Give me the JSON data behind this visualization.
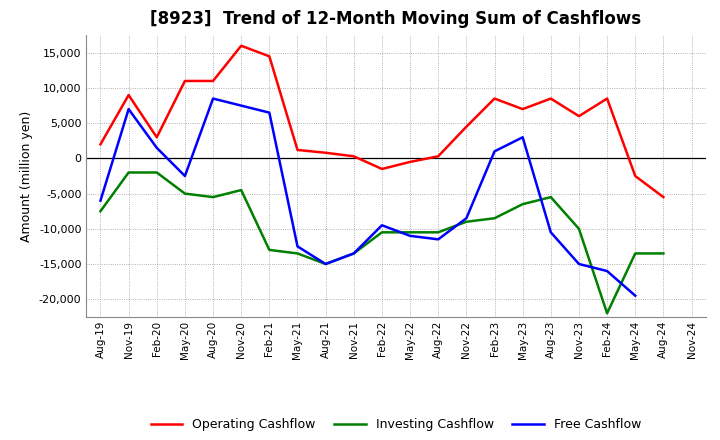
{
  "title": "[8923]  Trend of 12-Month Moving Sum of Cashflows",
  "ylabel": "Amount (million yen)",
  "xlabels": [
    "Aug-19",
    "Nov-19",
    "Feb-20",
    "May-20",
    "Aug-20",
    "Nov-20",
    "Feb-21",
    "May-21",
    "Aug-21",
    "Nov-21",
    "Feb-22",
    "May-22",
    "Aug-22",
    "Nov-22",
    "Feb-23",
    "May-23",
    "Aug-23",
    "Nov-23",
    "Feb-24",
    "May-24",
    "Aug-24",
    "Nov-24"
  ],
  "operating": [
    2000,
    9000,
    3000,
    11000,
    11000,
    16000,
    14500,
    1200,
    800,
    300,
    -1500,
    -500,
    300,
    4500,
    8500,
    7000,
    8500,
    6000,
    8500,
    -2500,
    -5500,
    null
  ],
  "investing": [
    -7500,
    -2000,
    -2000,
    -5000,
    -5500,
    -4500,
    -13000,
    -13500,
    -15000,
    -13500,
    -10500,
    -10500,
    -10500,
    -9000,
    -8500,
    -6500,
    -5500,
    -10000,
    -22000,
    -13500,
    -13500,
    null
  ],
  "free": [
    -6000,
    7000,
    1500,
    -2500,
    8500,
    7500,
    6500,
    -12500,
    -15000,
    -13500,
    -9500,
    -11000,
    -11500,
    -8500,
    1000,
    3000,
    -10500,
    -15000,
    -16000,
    -19500,
    null,
    null
  ],
  "operating_color": "#ff0000",
  "investing_color": "#008000",
  "free_color": "#0000ff",
  "ylim": [
    -22500,
    17500
  ],
  "yticks": [
    -20000,
    -15000,
    -10000,
    -5000,
    0,
    5000,
    10000,
    15000
  ],
  "background_color": "#ffffff",
  "grid_color": "#999999",
  "line_width": 1.8
}
